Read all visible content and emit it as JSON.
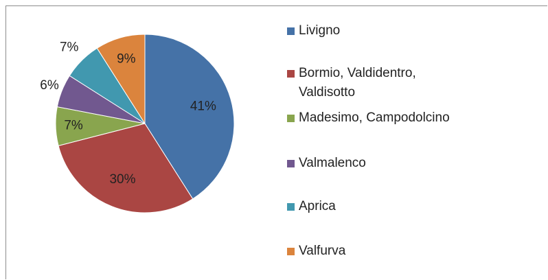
{
  "chart_data": {
    "type": "pie",
    "categories": [
      "Livigno",
      "Bormio, Valdidentro, Valdisotto",
      "Madesimo, Campodolcino",
      "Valmalenco",
      "Aprica",
      "Valfurva"
    ],
    "values": [
      41,
      30,
      7,
      6,
      7,
      9
    ],
    "value_labels": [
      "41%",
      "30%",
      "7%",
      "6%",
      "7%",
      "9%"
    ],
    "colors": [
      "#4572a7",
      "#aa4643",
      "#89a54e",
      "#71588f",
      "#4198af",
      "#db843d"
    ],
    "legend": "right"
  }
}
